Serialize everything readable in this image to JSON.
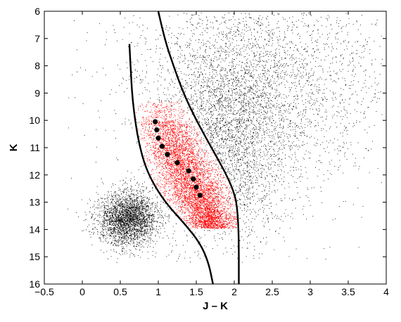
{
  "chart_data": {
    "type": "scatter",
    "title": "",
    "xlabel": "J – K",
    "ylabel": "K",
    "xlim": [
      -0.5,
      4
    ],
    "ylim": [
      16,
      6
    ],
    "y_inverted": true,
    "grid": false,
    "legend": "none",
    "xticks": [
      "−0.5",
      "0",
      "0.5",
      "1",
      "1.5",
      "2",
      "2.5",
      "3",
      "3.5",
      "4"
    ],
    "yticks": [
      "6",
      "7",
      "8",
      "9",
      "10",
      "11",
      "12",
      "13",
      "14",
      "15",
      "16"
    ],
    "colors": {
      "field": "#000000",
      "selected": "#ff0000",
      "markers": "#000000",
      "bounds": "#000000"
    },
    "density_fields": [
      {
        "color": "#000000",
        "population": "field stars",
        "center": [
          0.6,
          13.6
        ],
        "spread": [
          0.2,
          0.5
        ],
        "weight": 0.32
      },
      {
        "color": "#000000",
        "population": "field stars",
        "center": [
          1.9,
          10.8
        ],
        "spread": [
          0.45,
          2.0
        ],
        "weight": 0.38
      },
      {
        "color": "#000000",
        "population": "field stars",
        "center": [
          2.4,
          8.5
        ],
        "spread": [
          0.9,
          1.8
        ],
        "weight": 0.3
      },
      {
        "color": "#ff0000",
        "population": "selected stars",
        "center": [
          1.4,
          12.6
        ],
        "spread": [
          0.25,
          0.6
        ]
      }
    ],
    "markers": [
      {
        "x": 0.96,
        "y": 10.05
      },
      {
        "x": 0.98,
        "y": 10.35
      },
      {
        "x": 1.0,
        "y": 10.65
      },
      {
        "x": 1.05,
        "y": 10.95
      },
      {
        "x": 1.12,
        "y": 11.25
      },
      {
        "x": 1.25,
        "y": 11.55
      },
      {
        "x": 1.4,
        "y": 11.85
      },
      {
        "x": 1.46,
        "y": 12.15
      },
      {
        "x": 1.5,
        "y": 12.45
      },
      {
        "x": 1.55,
        "y": 12.75
      }
    ],
    "boundary_lines": [
      {
        "side": "left",
        "points": [
          [
            0.62,
            7.2
          ],
          [
            0.64,
            8.3
          ],
          [
            0.66,
            9.2
          ],
          [
            0.7,
            10.1
          ],
          [
            0.75,
            10.9
          ],
          [
            0.83,
            11.7
          ],
          [
            0.95,
            12.4
          ],
          [
            1.12,
            13.1
          ],
          [
            1.35,
            13.8
          ],
          [
            1.55,
            14.5
          ],
          [
            1.66,
            15.2
          ],
          [
            1.72,
            16.0
          ]
        ]
      },
      {
        "side": "right",
        "points": [
          [
            1.0,
            6.0
          ],
          [
            1.08,
            7.0
          ],
          [
            1.2,
            8.0
          ],
          [
            1.33,
            9.0
          ],
          [
            1.5,
            10.0
          ],
          [
            1.7,
            11.0
          ],
          [
            1.9,
            12.0
          ],
          [
            2.02,
            12.8
          ],
          [
            2.05,
            13.6
          ],
          [
            2.06,
            14.5
          ],
          [
            2.06,
            16.0
          ]
        ]
      }
    ]
  }
}
